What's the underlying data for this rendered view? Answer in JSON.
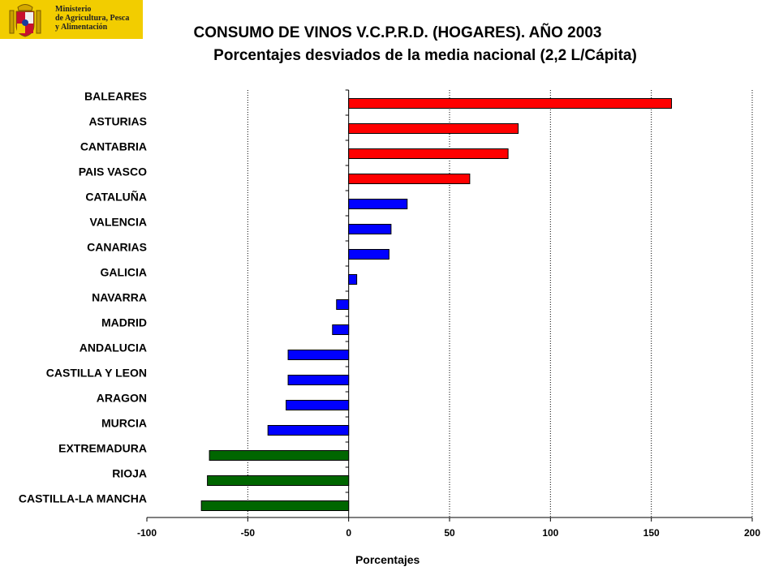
{
  "logo": {
    "lines": [
      "Ministerio",
      "de Agricultura, Pesca",
      "y Alimentación"
    ]
  },
  "chart_data": {
    "type": "bar",
    "orientation": "horizontal",
    "title": "CONSUMO DE VINOS V.C.P.R.D. (HOGARES). AÑO 2003",
    "subtitle": "Porcentajes desviados de la media nacional (2,2 L/Cápita)",
    "xlabel": "Porcentajes",
    "ylabel": "",
    "xlim": [
      -100,
      200
    ],
    "xticks": [
      -100,
      -50,
      0,
      50,
      100,
      150,
      200
    ],
    "gridlines": [
      -50,
      50,
      100,
      150,
      200
    ],
    "categories": [
      "BALEARES",
      "ASTURIAS",
      "CANTABRIA",
      "PAIS VASCO",
      "CATALUÑA",
      "VALENCIA",
      "CANARIAS",
      "GALICIA",
      "NAVARRA",
      "MADRID",
      "ANDALUCIA",
      "CASTILLA Y LEON",
      "ARAGON",
      "MURCIA",
      "EXTREMADURA",
      "RIOJA",
      "CASTILLA-LA MANCHA"
    ],
    "values": [
      160,
      84,
      79,
      60,
      29,
      21,
      20,
      4,
      -6,
      -8,
      -30,
      -30,
      -31,
      -40,
      -69,
      -70,
      -73
    ],
    "bar_colors": [
      "#ff0000",
      "#ff0000",
      "#ff0000",
      "#ff0000",
      "#0000ff",
      "#0000ff",
      "#0000ff",
      "#0000ff",
      "#0000ff",
      "#0000ff",
      "#0000ff",
      "#0000ff",
      "#0000ff",
      "#0000ff",
      "#006600",
      "#006600",
      "#006600"
    ]
  }
}
